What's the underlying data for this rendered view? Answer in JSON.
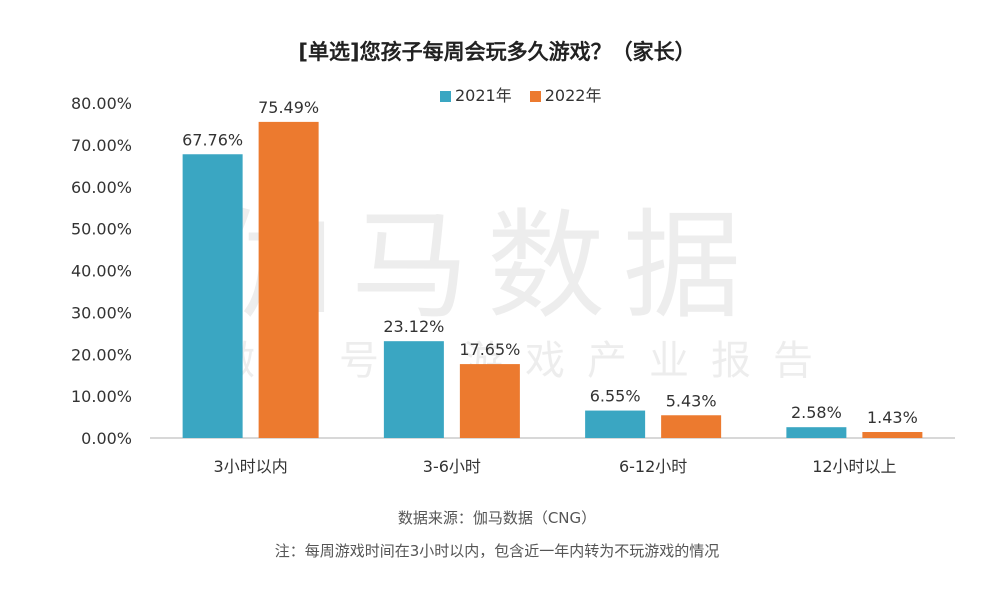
{
  "chart_data": {
    "type": "bar",
    "title": "[单选]您孩子每周会玩多久游戏？（家长）",
    "categories": [
      "3小时以内",
      "3-6小时",
      "6-12小时",
      "12小时以上"
    ],
    "series": [
      {
        "name": "2021年",
        "color": "#3aa6c2",
        "values": [
          67.76,
          23.12,
          6.55,
          2.58
        ],
        "labels": [
          "67.76%",
          "23.12%",
          "6.55%",
          "2.58%"
        ]
      },
      {
        "name": "2022年",
        "color": "#ec7a2f",
        "values": [
          75.49,
          17.65,
          5.43,
          1.43
        ],
        "labels": [
          "75.49%",
          "17.65%",
          "5.43%",
          "1.43%"
        ]
      }
    ],
    "yticks": [
      "0.00%",
      "10.00%",
      "20.00%",
      "30.00%",
      "40.00%",
      "50.00%",
      "60.00%",
      "70.00%",
      "80.00%"
    ],
    "ylim": [
      0,
      80
    ],
    "xlabel": "",
    "ylabel": "",
    "grid": false,
    "legend": "top-center"
  },
  "watermark": {
    "main": "伽马数据",
    "sub": "微信号：游戏产业报告"
  },
  "source": "数据来源：伽马数据（CNG）",
  "note": "注：每周游戏时间在3小时以内，包含近一年内转为不玩游戏的情况"
}
